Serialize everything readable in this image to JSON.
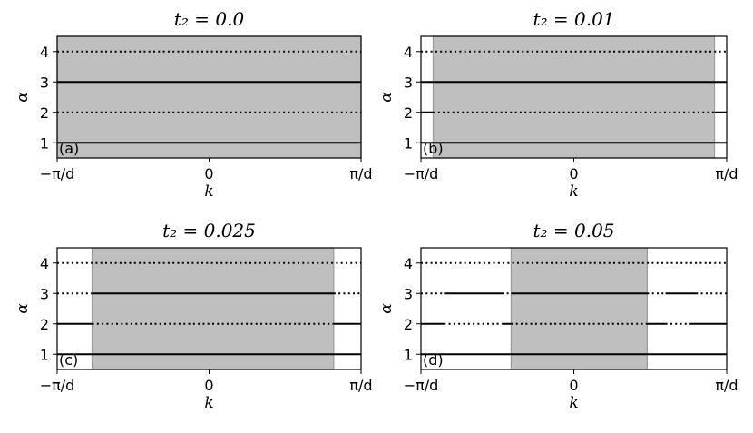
{
  "chart_data": [
    {
      "type": "line",
      "panel_label": "(a)",
      "title": "t₂ = 0.0",
      "xlabel": "k",
      "ylabel": "α",
      "xlim": [
        -1,
        1
      ],
      "ylim": [
        0.5,
        4.5
      ],
      "xtick_labels": [
        "−π/d",
        "0",
        "π/d"
      ],
      "ytick_labels": [
        "1",
        "2",
        "3",
        "4"
      ],
      "shaded_region": [
        -1,
        1
      ],
      "lines": [
        {
          "alpha": 1,
          "segments": [
            {
              "x0": -1,
              "x1": 1,
              "style": "solid"
            }
          ]
        },
        {
          "alpha": 2,
          "segments": [
            {
              "x0": -1,
              "x1": 1,
              "style": "dotted"
            }
          ]
        },
        {
          "alpha": 3,
          "segments": [
            {
              "x0": -1,
              "x1": 1,
              "style": "solid"
            }
          ]
        },
        {
          "alpha": 4,
          "segments": [
            {
              "x0": -1,
              "x1": 1,
              "style": "dotted"
            }
          ]
        }
      ]
    },
    {
      "type": "line",
      "panel_label": "(b)",
      "title": "t₂ = 0.01",
      "xlabel": "k",
      "ylabel": "α",
      "xlim": [
        -1,
        1
      ],
      "ylim": [
        0.5,
        4.5
      ],
      "xtick_labels": [
        "−π/d",
        "0",
        "π/d"
      ],
      "ytick_labels": [
        "1",
        "2",
        "3",
        "4"
      ],
      "shaded_region": [
        -0.92,
        0.92
      ],
      "lines": [
        {
          "alpha": 1,
          "segments": [
            {
              "x0": -1,
              "x1": 1,
              "style": "solid"
            }
          ]
        },
        {
          "alpha": 2,
          "segments": [
            {
              "x0": -1,
              "x1": -0.92,
              "style": "solid"
            },
            {
              "x0": -0.92,
              "x1": 0.92,
              "style": "dotted"
            },
            {
              "x0": 0.92,
              "x1": 1,
              "style": "solid"
            }
          ]
        },
        {
          "alpha": 3,
          "segments": [
            {
              "x0": -1,
              "x1": 1,
              "style": "solid"
            }
          ]
        },
        {
          "alpha": 4,
          "segments": [
            {
              "x0": -1,
              "x1": 1,
              "style": "dotted"
            }
          ]
        }
      ]
    },
    {
      "type": "line",
      "panel_label": "(c)",
      "title": "t₂ = 0.025",
      "xlabel": "k",
      "ylabel": "α",
      "xlim": [
        -1,
        1
      ],
      "ylim": [
        0.5,
        4.5
      ],
      "xtick_labels": [
        "−π/d",
        "0",
        "π/d"
      ],
      "ytick_labels": [
        "1",
        "2",
        "3",
        "4"
      ],
      "shaded_region": [
        -0.77,
        0.82
      ],
      "lines": [
        {
          "alpha": 1,
          "segments": [
            {
              "x0": -1,
              "x1": 1,
              "style": "solid"
            }
          ]
        },
        {
          "alpha": 2,
          "segments": [
            {
              "x0": -1,
              "x1": -0.77,
              "style": "solid"
            },
            {
              "x0": -0.77,
              "x1": 0.82,
              "style": "dotted"
            },
            {
              "x0": 0.82,
              "x1": 1,
              "style": "solid"
            }
          ]
        },
        {
          "alpha": 3,
          "segments": [
            {
              "x0": -1,
              "x1": -0.77,
              "style": "dotted"
            },
            {
              "x0": -0.77,
              "x1": 0.82,
              "style": "solid"
            },
            {
              "x0": 0.82,
              "x1": 1,
              "style": "dotted"
            }
          ]
        },
        {
          "alpha": 4,
          "segments": [
            {
              "x0": -1,
              "x1": 1,
              "style": "dotted"
            }
          ]
        }
      ]
    },
    {
      "type": "line",
      "panel_label": "(d)",
      "title": "t₂ = 0.05",
      "xlabel": "k",
      "ylabel": "α",
      "xlim": [
        -1,
        1
      ],
      "ylim": [
        0.5,
        4.5
      ],
      "xtick_labels": [
        "−π/d",
        "0",
        "π/d"
      ],
      "ytick_labels": [
        "1",
        "2",
        "3",
        "4"
      ],
      "shaded_region": [
        -0.41,
        0.48
      ],
      "lines": [
        {
          "alpha": 1,
          "segments": [
            {
              "x0": -1,
              "x1": 1,
              "style": "solid"
            }
          ]
        },
        {
          "alpha": 2,
          "segments": [
            {
              "x0": -1,
              "x1": -0.85,
              "style": "solid"
            },
            {
              "x0": -0.85,
              "x1": -0.47,
              "style": "dotted"
            },
            {
              "x0": -0.47,
              "x1": -0.41,
              "style": "solid"
            },
            {
              "x0": -0.41,
              "x1": 0.48,
              "style": "dotted"
            },
            {
              "x0": 0.48,
              "x1": 0.6,
              "style": "solid"
            },
            {
              "x0": 0.6,
              "x1": 0.76,
              "style": "dotted"
            },
            {
              "x0": 0.76,
              "x1": 1,
              "style": "solid"
            }
          ]
        },
        {
          "alpha": 3,
          "segments": [
            {
              "x0": -1,
              "x1": -0.85,
              "style": "dotted"
            },
            {
              "x0": -0.85,
              "x1": -0.47,
              "style": "solid"
            },
            {
              "x0": -0.47,
              "x1": -0.41,
              "style": "dotted"
            },
            {
              "x0": -0.41,
              "x1": 0.48,
              "style": "solid"
            },
            {
              "x0": 0.48,
              "x1": 0.6,
              "style": "dotted"
            },
            {
              "x0": 0.6,
              "x1": 0.8,
              "style": "solid"
            },
            {
              "x0": 0.8,
              "x1": 1,
              "style": "dotted"
            }
          ]
        },
        {
          "alpha": 4,
          "segments": [
            {
              "x0": -1,
              "x1": 1,
              "style": "dotted"
            }
          ]
        }
      ]
    }
  ]
}
